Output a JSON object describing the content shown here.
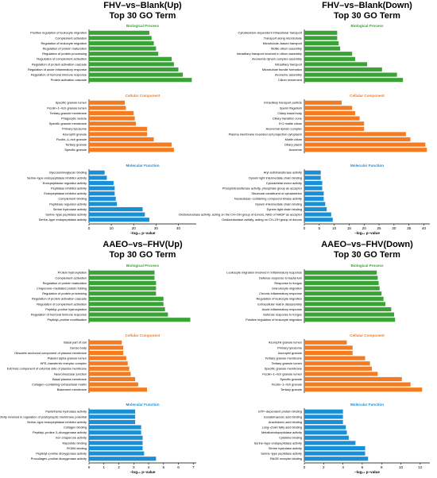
{
  "figure": {
    "colors": {
      "biological_process": "#3aa335",
      "cellular_component": "#f47b20",
      "molecular_function": "#1a8fd6",
      "text": "#000000"
    }
  },
  "chart_data": [
    {
      "type": "bar",
      "title": "FHV–vs–Blank(Up)",
      "subtitle": "Top 30 GO Term",
      "xlabel": "–log₁₀ p–value",
      "xlim": [
        0,
        48
      ],
      "xticks": [
        "0",
        "10",
        "20",
        "30",
        "40"
      ],
      "xtick_values": [
        0,
        10,
        20,
        30,
        40
      ],
      "groups": [
        {
          "name": "Biological Process",
          "color": "#3aa335",
          "categories": [
            "Positive regulation of leukocyte migration",
            "Complement activation",
            "Regulation of leukocyte migration",
            "Regulation of protein maturation",
            "Regulation of protein processing",
            "Regulation of complement activation",
            "Regulation of protein activation cascade",
            "Regulation of acute inflammatory response",
            "Regulation of humoral immune response",
            "Protein activation cascade"
          ],
          "values": [
            27,
            28,
            29,
            30,
            31,
            37,
            38,
            40,
            42,
            46
          ]
        },
        {
          "name": "Cellular Component",
          "color": "#f47b20",
          "categories": [
            "Specific granule lumen",
            "Ficolin–1–rich granule lumen",
            "Tertiary granule membrane",
            "Phagocytic vesicle",
            "Specific granule membrane",
            "Primary lysosome",
            "Azurophil granule",
            "Ficolin–1–rich granule",
            "Tertiary granule",
            "Specific granule"
          ],
          "values": [
            16,
            16.5,
            20,
            20.5,
            21,
            26,
            26,
            29,
            37,
            38
          ]
        },
        {
          "name": "Molecular Function",
          "color": "#1a8fd6",
          "categories": [
            "Glycosaminoglycan binding",
            "Serine–type endopeptidase inhibitor activity",
            "Endopeptidase regulator activity",
            "Peptidase inhibitor activity",
            "Endopeptidase inhibitor activity",
            "Complement binding",
            "Peptidase regulator activity",
            "Serine hydrolase activity",
            "Serine–type peptidase activity",
            "Serine–type endopeptidase activity"
          ],
          "values": [
            7,
            8,
            11,
            11.5,
            11.5,
            12,
            12.5,
            24,
            25,
            27
          ]
        }
      ]
    },
    {
      "type": "bar",
      "title": "FHV–vs–Blank(Down)",
      "subtitle": "Top 30 GO Term",
      "xlabel": "–log₁₀ p–value",
      "xlim": [
        0,
        42
      ],
      "xticks": [
        "0",
        "5",
        "10",
        "15",
        "20",
        "25",
        "30",
        "35",
        "40"
      ],
      "xtick_values": [
        0,
        5,
        10,
        15,
        20,
        25,
        30,
        35,
        40
      ],
      "groups": [
        {
          "name": "Biological Process",
          "color": "#3aa335",
          "categories": [
            "Cytoskeleton–dependent intracellular transport",
            "Transport along microtubule",
            "Microtubule–based transport",
            "Motile cilium assembly",
            "Intracillary transport involved in cilium assembly",
            "Axonemal dynein complex assembly",
            "Intracillary transport",
            "Microtubule bundle formation",
            "Axoneme assembly",
            "Cilium movement"
          ],
          "values": [
            11,
            11,
            11.5,
            12,
            16,
            17,
            21,
            26,
            31,
            33
          ]
        },
        {
          "name": "Cellular Component",
          "color": "#f47b20",
          "categories": [
            "Intracillary transport particle",
            "Sperm flagellum",
            "Ciliary basal body",
            "Ciliary transition zone",
            "9+2 motile cilium",
            "Axonemal dynein complex",
            "Plasma membrane bounded cell projection cytoplasm",
            "Motile cilium",
            "Ciliary plasm",
            "Axoneme"
          ],
          "values": [
            12.5,
            16,
            17,
            18.5,
            20,
            20,
            34,
            35.5,
            40.5,
            41
          ]
        },
        {
          "name": "Molecular Function",
          "color": "#1a8fd6",
          "categories": [
            "Aryl sulfotransferase activity",
            "Dynein light intermediate chain binding",
            "Cytoskeletal motor activity",
            "Phosphotransferase activity, phosphate group as acceptor",
            "Structural constituent of cytoskeleton",
            "Nucleobase–containing compound kinase activity",
            "Dynein intermediate chain binding",
            "Dynein light chain binding",
            "Oxidoreductase activity, acting on the CH–OH group of donors, NAD or NADP as acceptor",
            "Oxidoreductase activity, acting on CH–OH group of donors"
          ],
          "values": [
            5.5,
            5.5,
            6,
            6,
            6.5,
            6.5,
            7,
            7.5,
            9,
            9.5
          ]
        }
      ]
    },
    {
      "type": "bar",
      "title": "AAEO–vs–FHV(Up)",
      "subtitle": "Top 30 GO Term",
      "xlabel": "–log₁₀ p–value",
      "xlim": [
        0,
        7.2
      ],
      "xticks": [
        "0",
        "1",
        "2",
        "3",
        "4",
        "5",
        "6",
        "7"
      ],
      "xtick_values": [
        0,
        1,
        2,
        3,
        4,
        5,
        6,
        7
      ],
      "groups": [
        {
          "name": "Biological Process",
          "color": "#3aa335",
          "categories": [
            "Protein hydroxylation",
            "Complement activation",
            "Regulation of protein maturation",
            "Chaperone–mediated protein folding",
            "Regulation of protein processing",
            "Regulation of protein activation cascade",
            "Regulation of complement activation",
            "Peptidyl–proline hydroxylation",
            "Regulation of humoral immune response",
            "Peptidyl–proline modification"
          ],
          "values": [
            4.4,
            4.4,
            4.5,
            4.5,
            4.5,
            5.0,
            5.0,
            5.1,
            5.3,
            6.8
          ]
        },
        {
          "name": "Cellular Component",
          "color": "#f47b20",
          "categories": [
            "Basal part of cell",
            "Dense body",
            "Obsolete anchored component of plasma membrane",
            "Platelet alpha granule lumen",
            "HFE–transferrin receptor complex",
            "Extrinsic component of external side of plasma membrane",
            "Neuromuscular junction",
            "Basal plasma membrane",
            "Collagen–containing extracellular matrix",
            "Basement membrane"
          ],
          "values": [
            2.2,
            2.3,
            2.3,
            2.5,
            2.6,
            2.7,
            2.8,
            3.1,
            3.3,
            3.9
          ]
        },
        {
          "name": "Molecular Function",
          "color": "#1a8fd6",
          "categories": [
            "Pantetheine hydrolase activity",
            "Mitomatonic ion antiporter activity involved in regulation of postsynaptic membrane potential",
            "Serine–type endopeptidase inhibitor activity",
            "Collagen binding",
            "Peptidyl–proline 3–dioxygenase activity",
            "Iron chaperone activity",
            "Macrolide binding",
            "FK506 binding",
            "Peptidyl–proline dioxygenase activity",
            "Procollagen–proline dioxygenase activity"
          ],
          "values": [
            3.1,
            3.1,
            3.1,
            3.5,
            3.5,
            3.6,
            3.6,
            3.6,
            3.7,
            4.5
          ]
        }
      ]
    },
    {
      "type": "bar",
      "title": "AAEO–vs–FHV(Down)",
      "subtitle": "Top 30 GO Term",
      "xlabel": "–log₁₀ p–value",
      "xlim": [
        0,
        13
      ],
      "xticks": [
        "0",
        "2",
        "4",
        "6",
        "8",
        "10",
        "12"
      ],
      "xtick_values": [
        0,
        2,
        4,
        6,
        8,
        10,
        12
      ],
      "groups": [
        {
          "name": "Biological Process",
          "color": "#3aa335",
          "categories": [
            "Leukocyte migration involved in inflammatory response",
            "Defense response to bacterium",
            "Response to fungus",
            "Granulocyte migration",
            "Chronic inflammatory response",
            "Regulation of leukocyte migration",
            "Extracellular matrix disassembly",
            "Acute inflammatory response",
            "Defense response to fungus",
            "Positive regulation of leukocyte migration"
          ],
          "values": [
            7.5,
            7.6,
            7.7,
            7.8,
            8.0,
            8.2,
            8.4,
            9.0,
            9.3,
            9.4
          ]
        },
        {
          "name": "Cellular Component",
          "color": "#f47b20",
          "categories": [
            "Azurophil granule lumen",
            "Primary lysosome",
            "Azurophil granule",
            "Tertiary granule membrane",
            "Tertiary granule lumen",
            "Specific granule membrane",
            "Ficolin–1–rich granule lumen",
            "Specific granule",
            "Ficolin–1–rich granule",
            "Tertiary granule"
          ],
          "values": [
            4.4,
            5.0,
            5.0,
            6.3,
            6.8,
            7.0,
            7.6,
            10.1,
            11.0,
            12.2
          ]
        },
        {
          "name": "Molecular Function",
          "color": "#1a8fd6",
          "categories": [
            "GTP–dependent protein binding",
            "Icosatetraenoic acid binding",
            "Arachidonic acid binding",
            "Long–chain fatty acid binding",
            "Metalloendopeptidase activity",
            "Cytokine binding",
            "Serine–type endopeptidase activity",
            "Serine hydrolase activity",
            "Serine–type peptidase activity",
            "RAGE receptor binding"
          ],
          "values": [
            4.0,
            4.0,
            4.0,
            4.3,
            4.4,
            4.6,
            5.3,
            6.3,
            6.3,
            6.6
          ]
        }
      ]
    }
  ]
}
